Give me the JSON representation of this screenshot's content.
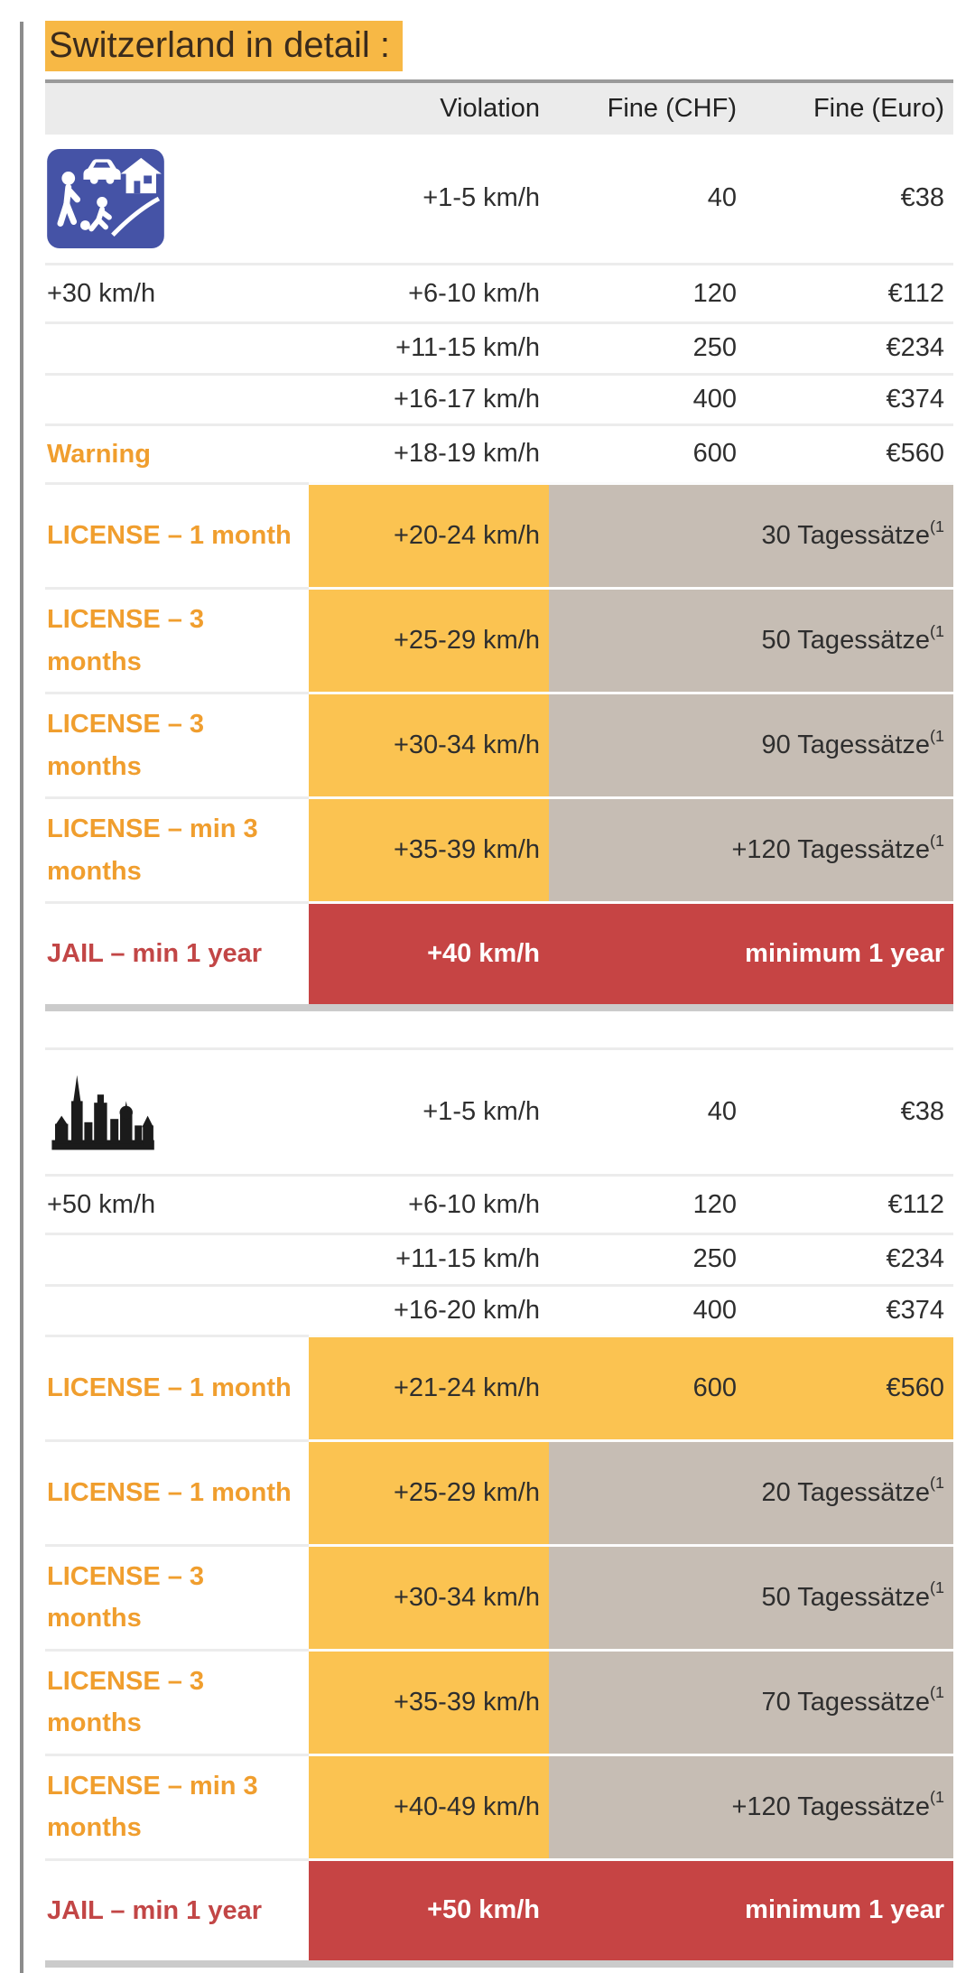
{
  "page": {
    "title": "Switzerland in detail :"
  },
  "table": {
    "columns": [
      "",
      "Violation",
      "Fine (CHF)",
      "Fine (Euro)"
    ],
    "colors": {
      "title_highlight": "#F7B845",
      "cell_yellow": "#FBC351",
      "cell_tan": "#C6BDB4",
      "cell_red": "#C64444",
      "label_orange": "#F09E2E",
      "label_red": "#C24646",
      "sign_blue": "#4553A6",
      "icon_black": "#1B1B1B"
    },
    "sections": [
      {
        "zone": "+30 km/h",
        "zone_icon": "residential-zone-sign-icon",
        "rows": [
          {
            "icon": "residential-zone-sign-icon",
            "violation": "+1-5 km/h",
            "chf": "40",
            "euro": "€38",
            "variant": "plain"
          },
          {
            "label": "+30 km/h",
            "label_style": "zone",
            "violation": "+6-10 km/h",
            "chf": "120",
            "euro": "€112",
            "variant": "plain"
          },
          {
            "label": "",
            "violation": "+11-15 km/h",
            "chf": "250",
            "euro": "€234",
            "variant": "plain"
          },
          {
            "label": "",
            "violation": "+16-17 km/h",
            "chf": "400",
            "euro": "€374",
            "variant": "plain"
          },
          {
            "label": "Warning",
            "label_style": "warning",
            "violation": "+18-19 km/h",
            "chf": "600",
            "euro": "€560",
            "variant": "plain"
          },
          {
            "label": "LICENSE – 1 month",
            "label_style": "license",
            "violation": "+20-24 km/h",
            "merged": "30 Tagessätze",
            "merged_sup": "(1",
            "variant": "penalty"
          },
          {
            "label": "LICENSE – 3 months",
            "label_style": "license",
            "violation": "+25-29 km/h",
            "merged": "50 Tagessätze",
            "merged_sup": "(1",
            "variant": "penalty"
          },
          {
            "label": "LICENSE – 3 months",
            "label_style": "license",
            "violation": "+30-34 km/h",
            "merged": "90 Tagessätze",
            "merged_sup": "(1",
            "variant": "penalty"
          },
          {
            "label": "LICENSE – min 3 months",
            "label_style": "license",
            "violation": "+35-39 km/h",
            "merged": "+120 Tagessätze",
            "merged_sup": "(1",
            "variant": "penalty"
          },
          {
            "label": "JAIL – min 1 year",
            "label_style": "jail",
            "violation": "+40 km/h",
            "merged": "minimum 1 year",
            "variant": "jail"
          }
        ]
      },
      {
        "zone": "+50 km/h",
        "zone_icon": "city-skyline-icon",
        "rows": [
          {
            "icon": "city-skyline-icon",
            "violation": "+1-5 km/h",
            "chf": "40",
            "euro": "€38",
            "variant": "plain"
          },
          {
            "label": "+50 km/h",
            "label_style": "zone",
            "violation": "+6-10 km/h",
            "chf": "120",
            "euro": "€112",
            "variant": "plain"
          },
          {
            "label": "",
            "violation": "+11-15 km/h",
            "chf": "250",
            "euro": "€234",
            "variant": "plain"
          },
          {
            "label": "",
            "violation": "+16-20 km/h",
            "chf": "400",
            "euro": "€374",
            "variant": "plain"
          },
          {
            "label": "LICENSE – 1 month",
            "label_style": "license",
            "violation": "+21-24 km/h",
            "chf": "600",
            "euro": "€560",
            "variant": "highlight"
          },
          {
            "label": "LICENSE – 1 month",
            "label_style": "license",
            "violation": "+25-29 km/h",
            "merged": "20 Tagessätze",
            "merged_sup": "(1",
            "variant": "penalty"
          },
          {
            "label": "LICENSE – 3 months",
            "label_style": "license",
            "violation": "+30-34 km/h",
            "merged": "50 Tagessätze",
            "merged_sup": "(1",
            "variant": "penalty"
          },
          {
            "label": "LICENSE – 3 months",
            "label_style": "license",
            "violation": "+35-39 km/h",
            "merged": "70 Tagessätze",
            "merged_sup": "(1",
            "variant": "penalty"
          },
          {
            "label": "LICENSE – min 3 months",
            "label_style": "license",
            "violation": "+40-49 km/h",
            "merged": "+120 Tagessätze",
            "merged_sup": "(1",
            "variant": "penalty"
          },
          {
            "label": "JAIL – min 1 year",
            "label_style": "jail",
            "violation": "+50 km/h",
            "merged": "minimum 1 year",
            "variant": "jail"
          }
        ]
      }
    ]
  }
}
